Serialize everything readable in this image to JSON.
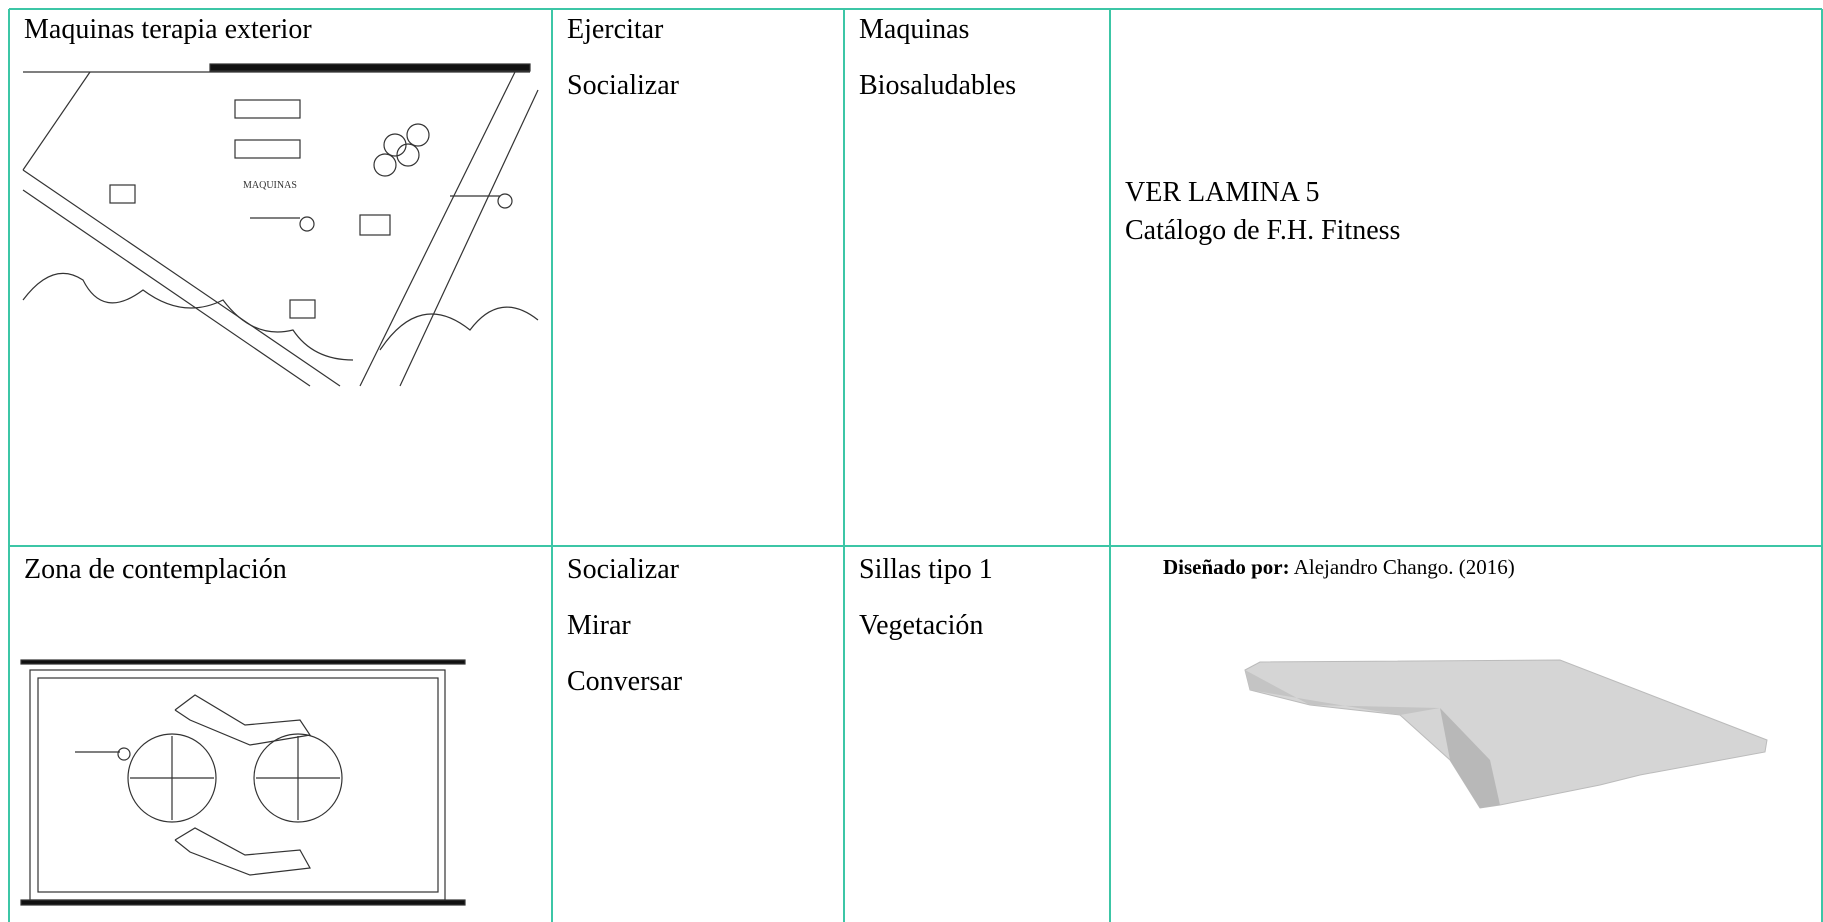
{
  "table": {
    "rows": [
      [
        {
          "title": "Maquinas terapia exterior"
        },
        {
          "lines": [
            "Ejercitar",
            "Socializar"
          ]
        },
        {
          "lines": [
            "Maquinas",
            "Biosaludables"
          ]
        },
        {
          "lines": [
            "VER LAMINA 5",
            "Catálogo de F.H. Fitness"
          ]
        }
      ],
      [
        {
          "title": "Zona de contemplación"
        },
        {
          "lines": [
            "Socializar",
            "Mirar",
            "Conversar"
          ]
        },
        {
          "lines": [
            "Sillas tipo 1",
            "Vegetación"
          ]
        },
        {
          "caption_label": "Diseñado por:",
          "caption_text": "Alejandro Chango. (2016)"
        }
      ]
    ]
  }
}
